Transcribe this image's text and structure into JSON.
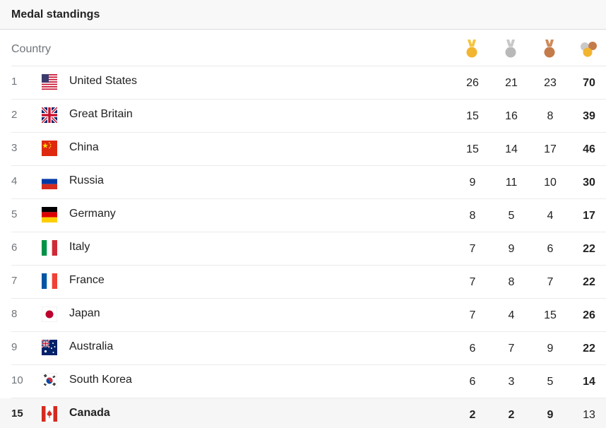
{
  "header": {
    "title": "Medal standings"
  },
  "columns": {
    "country": "Country",
    "icons": [
      "gold-medal-icon",
      "silver-medal-icon",
      "bronze-medal-icon",
      "total-medals-icon"
    ]
  },
  "colors": {
    "gold": "#f2b530",
    "silver": "#b9b9b9",
    "bronze": "#c47b4a",
    "ribbon_gold": "#f5c542",
    "ribbon_silver": "#c8c8c8",
    "ribbon_bronze": "#d08a5a"
  },
  "rows": [
    {
      "rank": "1",
      "country": "United States",
      "flag": "us-flag-icon",
      "gold": "26",
      "silver": "21",
      "bronze": "23",
      "total": "70"
    },
    {
      "rank": "2",
      "country": "Great Britain",
      "flag": "gb-flag-icon",
      "gold": "15",
      "silver": "16",
      "bronze": "8",
      "total": "39"
    },
    {
      "rank": "3",
      "country": "China",
      "flag": "cn-flag-icon",
      "gold": "15",
      "silver": "14",
      "bronze": "17",
      "total": "46"
    },
    {
      "rank": "4",
      "country": "Russia",
      "flag": "ru-flag-icon",
      "gold": "9",
      "silver": "11",
      "bronze": "10",
      "total": "30"
    },
    {
      "rank": "5",
      "country": "Germany",
      "flag": "de-flag-icon",
      "gold": "8",
      "silver": "5",
      "bronze": "4",
      "total": "17"
    },
    {
      "rank": "6",
      "country": "Italy",
      "flag": "it-flag-icon",
      "gold": "7",
      "silver": "9",
      "bronze": "6",
      "total": "22"
    },
    {
      "rank": "7",
      "country": "France",
      "flag": "fr-flag-icon",
      "gold": "7",
      "silver": "8",
      "bronze": "7",
      "total": "22"
    },
    {
      "rank": "8",
      "country": "Japan",
      "flag": "jp-flag-icon",
      "gold": "7",
      "silver": "4",
      "bronze": "15",
      "total": "26"
    },
    {
      "rank": "9",
      "country": "Australia",
      "flag": "au-flag-icon",
      "gold": "6",
      "silver": "7",
      "bronze": "9",
      "total": "22"
    },
    {
      "rank": "10",
      "country": "South Korea",
      "flag": "kr-flag-icon",
      "gold": "6",
      "silver": "3",
      "bronze": "5",
      "total": "14"
    }
  ],
  "highlight": {
    "rank": "15",
    "country": "Canada",
    "flag": "ca-flag-icon",
    "gold": "2",
    "silver": "2",
    "bronze": "9",
    "total": "13"
  }
}
